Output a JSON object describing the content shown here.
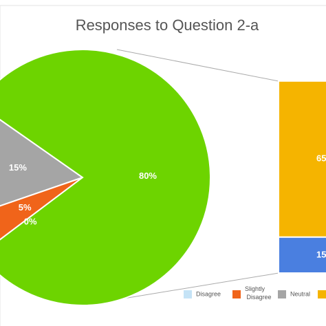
{
  "chart_data": {
    "type": "pie-of-bar",
    "title": "Responses to Question 2-a",
    "pie": {
      "categories": [
        "Disagree",
        "Slightly Disagree",
        "Neutral",
        null
      ],
      "values": [
        0,
        5,
        15,
        80
      ],
      "value_labels": [
        "0%",
        "5%",
        "15%",
        "80%"
      ],
      "colors": [
        "#c5e3f6",
        "#f0641a",
        "#a5a5a5",
        "#6dd400"
      ]
    },
    "bar": {
      "values": [
        65,
        15
      ],
      "colors": [
        "#f5b400",
        "#4a7fe0"
      ]
    },
    "legend": {
      "names": [
        "Disagree",
        "Slightly Disagree",
        "Neutral",
        null
      ],
      "colors": [
        "#c5e3f6",
        "#f0641a",
        "#a5a5a5",
        "#f5b400"
      ]
    }
  }
}
